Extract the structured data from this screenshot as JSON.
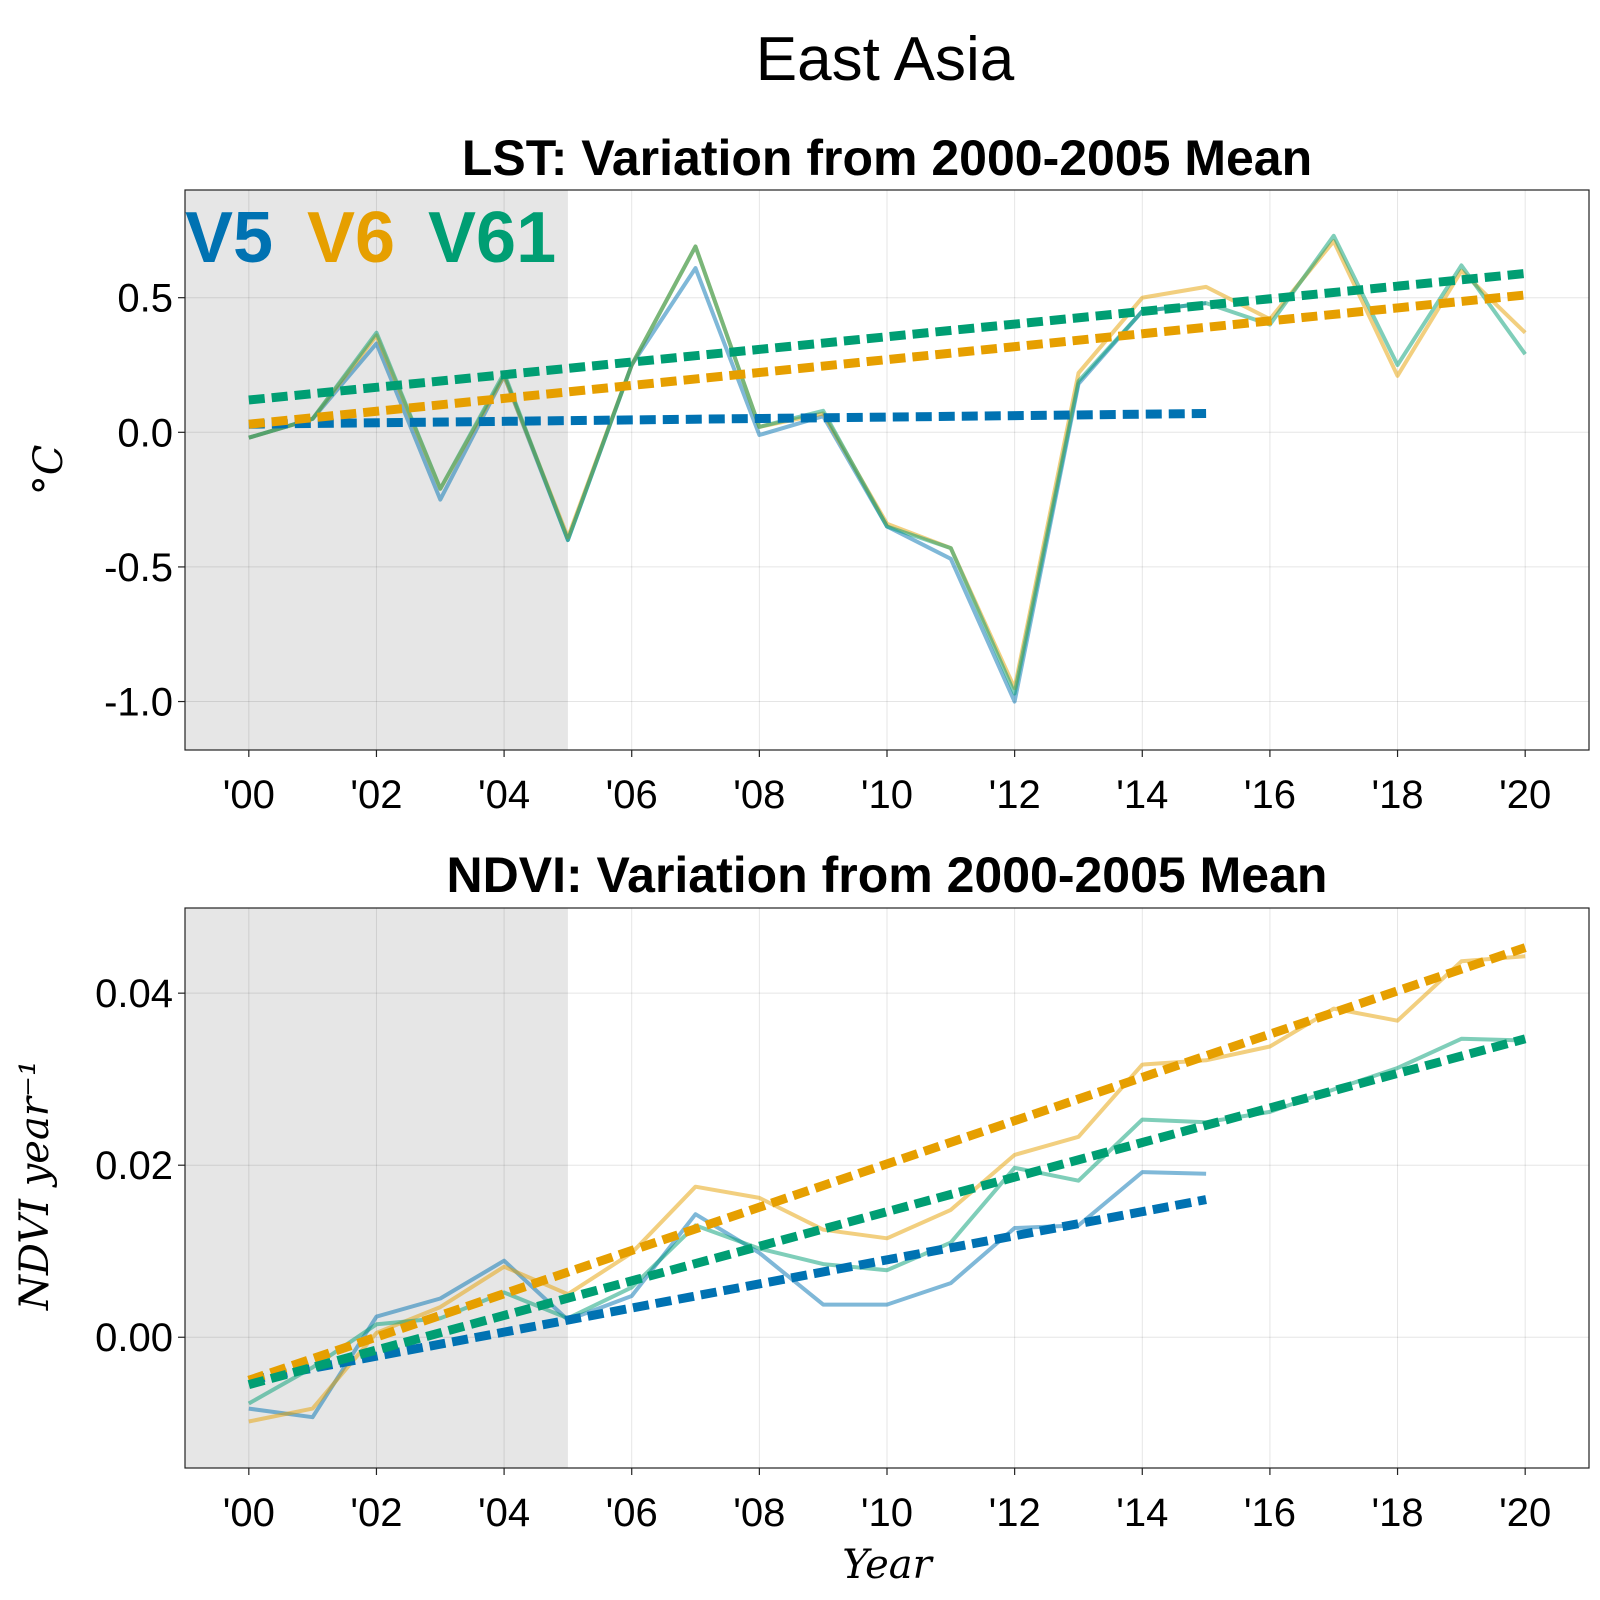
{
  "figure_title": "East Asia",
  "legend": [
    {
      "label": "V5",
      "color": "#0072B2"
    },
    {
      "label": "V6",
      "color": "#E69F00"
    },
    {
      "label": "V61",
      "color": "#009E73"
    }
  ],
  "colors": {
    "V5": "#0072B2",
    "V6": "#E69F00",
    "V61": "#009E73",
    "baseline_shade": "#E6E6E6"
  },
  "chart_data": [
    {
      "type": "line",
      "title": "LST: Variation from 2000-2005 Mean",
      "xlabel": "",
      "ylabel": "°C",
      "xlim": [
        1999,
        2021
      ],
      "ylim": [
        -1.18,
        0.9
      ],
      "shaded_x_range": [
        1999,
        2005
      ],
      "x_ticks": [
        2000,
        2002,
        2004,
        2006,
        2008,
        2010,
        2012,
        2014,
        2016,
        2018,
        2020
      ],
      "x_tick_labels": [
        "'00",
        "'02",
        "'04",
        "'06",
        "'08",
        "'10",
        "'12",
        "'14",
        "'16",
        "'18",
        "'20"
      ],
      "y_ticks": [
        -1.0,
        -0.5,
        0.0,
        0.5
      ],
      "y_tick_labels": [
        "-1.0",
        "-0.5",
        "0.0",
        "0.5"
      ],
      "grid": true,
      "series": [
        {
          "name": "V5",
          "kind": "data",
          "x": [
            2000,
            2001,
            2002,
            2003,
            2004,
            2005,
            2006,
            2007,
            2008,
            2009,
            2010,
            2011,
            2012,
            2013,
            2014,
            2015
          ],
          "y": [
            -0.02,
            0.05,
            0.33,
            -0.25,
            0.21,
            -0.4,
            0.25,
            0.61,
            -0.01,
            0.06,
            -0.35,
            -0.47,
            -1.0,
            0.18,
            0.45,
            0.48
          ]
        },
        {
          "name": "V6",
          "kind": "data",
          "x": [
            2000,
            2001,
            2002,
            2003,
            2004,
            2005,
            2006,
            2007,
            2008,
            2009,
            2010,
            2011,
            2012,
            2013,
            2014,
            2015,
            2016,
            2017,
            2018,
            2019,
            2020
          ],
          "y": [
            -0.02,
            0.05,
            0.36,
            -0.21,
            0.21,
            -0.39,
            0.25,
            0.69,
            0.02,
            0.07,
            -0.34,
            -0.43,
            -0.95,
            0.22,
            0.5,
            0.54,
            0.42,
            0.71,
            0.21,
            0.6,
            0.37
          ]
        },
        {
          "name": "V61",
          "kind": "data",
          "x": [
            2000,
            2001,
            2002,
            2003,
            2004,
            2005,
            2006,
            2007,
            2008,
            2009,
            2010,
            2011,
            2012,
            2013,
            2014,
            2015,
            2016,
            2017,
            2018,
            2019,
            2020
          ],
          "y": [
            -0.02,
            0.05,
            0.37,
            -0.21,
            0.22,
            -0.4,
            0.25,
            0.69,
            0.02,
            0.08,
            -0.35,
            -0.43,
            -0.97,
            0.19,
            0.45,
            0.48,
            0.4,
            0.73,
            0.25,
            0.62,
            0.29
          ]
        },
        {
          "name": "V5",
          "kind": "trend",
          "x": [
            2000,
            2015
          ],
          "y": [
            0.03,
            0.07
          ]
        },
        {
          "name": "V6",
          "kind": "trend",
          "x": [
            2000,
            2020
          ],
          "y": [
            0.03,
            0.51
          ]
        },
        {
          "name": "V61",
          "kind": "trend",
          "x": [
            2000,
            2020
          ],
          "y": [
            0.12,
            0.59
          ]
        }
      ]
    },
    {
      "type": "line",
      "title": "NDVI: Variation from 2000-2005 Mean",
      "xlabel": "Year",
      "ylabel": "NDVI year⁻¹",
      "xlim": [
        1999,
        2021
      ],
      "ylim": [
        -0.0152,
        0.0499
      ],
      "shaded_x_range": [
        1999,
        2005
      ],
      "x_ticks": [
        2000,
        2002,
        2004,
        2006,
        2008,
        2010,
        2012,
        2014,
        2016,
        2018,
        2020
      ],
      "x_tick_labels": [
        "'00",
        "'02",
        "'04",
        "'06",
        "'08",
        "'10",
        "'12",
        "'14",
        "'16",
        "'18",
        "'20"
      ],
      "y_ticks": [
        0.0,
        0.02,
        0.04
      ],
      "y_tick_labels": [
        "0.00",
        "0.02",
        "0.04"
      ],
      "grid": true,
      "series": [
        {
          "name": "V5",
          "kind": "data",
          "x": [
            2000,
            2001,
            2002,
            2003,
            2004,
            2005,
            2006,
            2007,
            2008,
            2009,
            2010,
            2011,
            2012,
            2013,
            2014,
            2015
          ],
          "y": [
            -0.0083,
            -0.0093,
            0.0024,
            0.0045,
            0.0089,
            0.002,
            0.0048,
            0.0143,
            0.0098,
            0.0038,
            0.0038,
            0.0063,
            0.0127,
            0.013,
            0.0192,
            0.019
          ]
        },
        {
          "name": "V6",
          "kind": "data",
          "x": [
            2000,
            2001,
            2002,
            2003,
            2004,
            2005,
            2006,
            2007,
            2008,
            2009,
            2010,
            2011,
            2012,
            2013,
            2014,
            2015,
            2016,
            2017,
            2018,
            2019,
            2020
          ],
          "y": [
            -0.0098,
            -0.0083,
            0.0005,
            0.0035,
            0.0082,
            0.005,
            0.0098,
            0.0175,
            0.0162,
            0.0125,
            0.0115,
            0.0148,
            0.0212,
            0.0233,
            0.0317,
            0.0322,
            0.0338,
            0.0382,
            0.0368,
            0.0437,
            0.0443
          ]
        },
        {
          "name": "V61",
          "kind": "data",
          "x": [
            2000,
            2001,
            2002,
            2003,
            2004,
            2005,
            2006,
            2007,
            2008,
            2009,
            2010,
            2011,
            2012,
            2013,
            2014,
            2015,
            2016,
            2017,
            2018,
            2019,
            2020
          ],
          "y": [
            -0.0077,
            -0.0035,
            0.0015,
            0.0022,
            0.0052,
            0.0022,
            0.0058,
            0.013,
            0.0103,
            0.0085,
            0.0078,
            0.011,
            0.0197,
            0.0182,
            0.0253,
            0.025,
            0.0262,
            0.0288,
            0.0313,
            0.0347,
            0.0345
          ]
        },
        {
          "name": "V5",
          "kind": "trend",
          "x": [
            2000,
            2015
          ],
          "y": [
            -0.005,
            0.016
          ]
        },
        {
          "name": "V6",
          "kind": "trend",
          "x": [
            2000,
            2020
          ],
          "y": [
            -0.005,
            0.0453
          ]
        },
        {
          "name": "V61",
          "kind": "trend",
          "x": [
            2000,
            2020
          ],
          "y": [
            -0.0055,
            0.0347
          ]
        }
      ]
    }
  ]
}
